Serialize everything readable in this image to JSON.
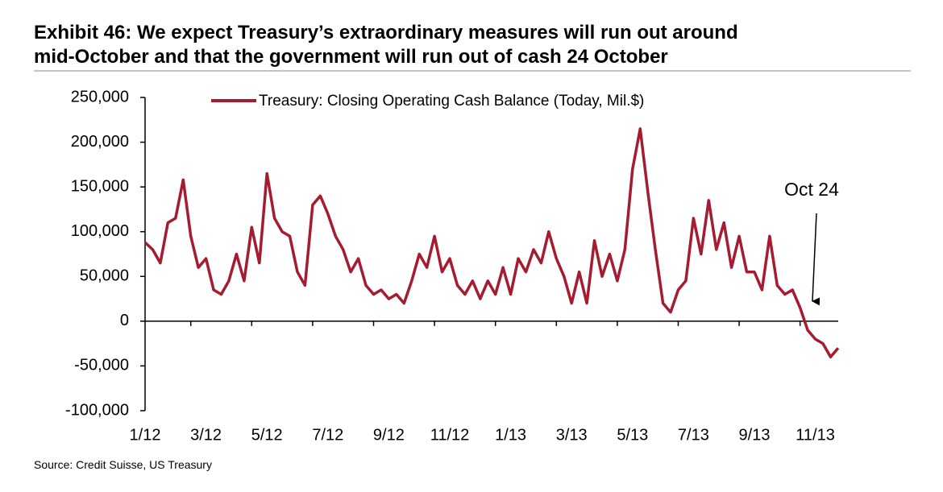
{
  "chart_data": {
    "type": "line",
    "title": "Exhibit 46: We expect Treasury’s extraordinary measures will run out around\nmid-October and that the government will run out of cash 24 October",
    "source": "Source: Credit Suisse, US Treasury",
    "annotation": "Oct 24",
    "categories": [
      "1/12",
      null,
      null,
      null,
      null,
      null,
      null,
      null,
      "3/12",
      null,
      null,
      null,
      null,
      null,
      null,
      null,
      "5/12",
      null,
      null,
      null,
      null,
      null,
      null,
      null,
      "7/12",
      null,
      null,
      null,
      null,
      null,
      null,
      null,
      "9/12",
      null,
      null,
      null,
      null,
      null,
      null,
      null,
      "11/12",
      null,
      null,
      null,
      null,
      null,
      null,
      null,
      "1/13",
      null,
      null,
      null,
      null,
      null,
      null,
      null,
      "3/13",
      null,
      null,
      null,
      null,
      null,
      null,
      null,
      "5/13",
      null,
      null,
      null,
      null,
      null,
      null,
      null,
      "7/13",
      null,
      null,
      null,
      null,
      null,
      null,
      null,
      "9/13",
      null,
      null,
      null,
      null,
      null,
      null,
      null,
      "11/13",
      null,
      null,
      null
    ],
    "series": [
      {
        "name": "Treasury: Closing Operating Cash Balance (Today, Mil.$)",
        "color": "#a51c30",
        "values": [
          88000,
          80000,
          65000,
          110000,
          115000,
          158000,
          95000,
          60000,
          70000,
          35000,
          30000,
          45000,
          75000,
          45000,
          105000,
          65000,
          165000,
          115000,
          100000,
          95000,
          55000,
          40000,
          130000,
          140000,
          120000,
          95000,
          80000,
          55000,
          70000,
          40000,
          30000,
          35000,
          25000,
          30000,
          20000,
          45000,
          75000,
          60000,
          95000,
          55000,
          70000,
          40000,
          30000,
          45000,
          25000,
          45000,
          30000,
          60000,
          30000,
          70000,
          55000,
          80000,
          65000,
          100000,
          70000,
          50000,
          20000,
          55000,
          20000,
          90000,
          50000,
          75000,
          45000,
          80000,
          170000,
          215000,
          145000,
          80000,
          20000,
          10000,
          35000,
          45000,
          115000,
          75000,
          135000,
          80000,
          110000,
          60000,
          95000,
          55000,
          55000,
          35000,
          95000,
          40000,
          30000,
          35000,
          15000,
          -10000,
          -20000,
          -25000,
          -40000,
          -30000
        ]
      }
    ],
    "ylim": [
      -100000,
      250000
    ],
    "yticks": [
      {
        "value": -100000,
        "label": "-100,000"
      },
      {
        "value": -50000,
        "label": "-50,000"
      },
      0,
      {
        "value": 50000,
        "label": "50,000"
      },
      {
        "value": 100000,
        "label": "100,000"
      },
      {
        "value": 150000,
        "label": "150,000"
      },
      {
        "value": 200000,
        "label": "200,000"
      },
      {
        "value": 250000,
        "label": "250,000"
      }
    ],
    "grid": false
  }
}
